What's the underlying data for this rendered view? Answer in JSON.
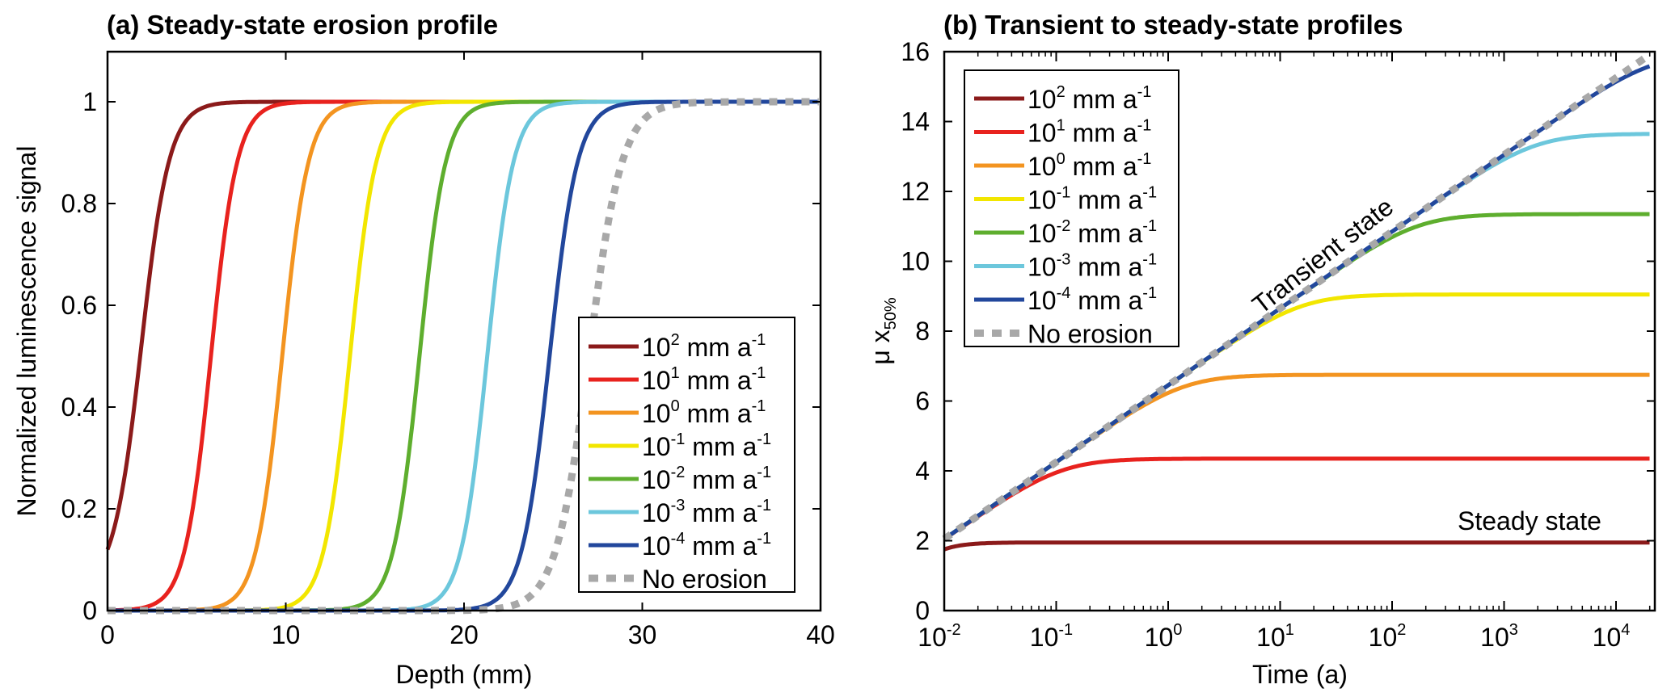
{
  "chart_data": [
    {
      "id": "a",
      "type": "line",
      "title": "(a)  Steady-state erosion profile",
      "xlabel": "Depth (mm)",
      "ylabel": "Normalized luminescence signal",
      "xlim": [
        0,
        40
      ],
      "ylim": [
        0,
        1.1
      ],
      "xticks": [
        0,
        10,
        20,
        30,
        40
      ],
      "xtick_labels": [
        "0",
        "10",
        "20",
        "30",
        "40"
      ],
      "yticks": [
        0,
        0.2,
        0.4,
        0.6,
        0.8,
        1
      ],
      "ytick_labels": [
        "0",
        "0.2",
        "0.4",
        "0.6",
        "0.8",
        "1"
      ],
      "grid": false,
      "legend_position": "bottom-right",
      "series": [
        {
          "name": "10^2 mm a^-1",
          "base": "10",
          "exp": "2",
          "unit": " mm a",
          "unit_exp": "-1",
          "color": "#8B1A1A",
          "style": "solid",
          "midpoint_depth": 1.9,
          "width": 1.6,
          "surface_value": 0.12
        },
        {
          "name": "10^1 mm a^-1",
          "base": "10",
          "exp": "1",
          "unit": " mm a",
          "unit_exp": "-1",
          "color": "#E8221E",
          "style": "solid",
          "midpoint_depth": 5.8,
          "width": 1.5,
          "surface_value": 0
        },
        {
          "name": "10^0 mm a^-1",
          "base": "10",
          "exp": "0",
          "unit": " mm a",
          "unit_exp": "-1",
          "color": "#F39420",
          "style": "solid",
          "midpoint_depth": 9.8,
          "width": 1.5,
          "surface_value": 0
        },
        {
          "name": "10^-1 mm a^-1",
          "base": "10",
          "exp": "-1",
          "unit": " mm a",
          "unit_exp": "-1",
          "color": "#F2E600",
          "style": "solid",
          "midpoint_depth": 13.6,
          "width": 1.5,
          "surface_value": 0
        },
        {
          "name": "10^-2 mm a^-1",
          "base": "10",
          "exp": "-2",
          "unit": " mm a",
          "unit_exp": "-1",
          "color": "#5EAE2E",
          "style": "solid",
          "midpoint_depth": 17.5,
          "width": 1.5,
          "surface_value": 0
        },
        {
          "name": "10^-3 mm a^-1",
          "base": "10",
          "exp": "-3",
          "unit": " mm a",
          "unit_exp": "-1",
          "color": "#6CC7DC",
          "style": "solid",
          "midpoint_depth": 21.3,
          "width": 1.5,
          "surface_value": 0
        },
        {
          "name": "10^-4 mm a^-1",
          "base": "10",
          "exp": "-4",
          "unit": " mm a",
          "unit_exp": "-1",
          "color": "#22479C",
          "style": "solid",
          "midpoint_depth": 24.8,
          "width": 1.6,
          "surface_value": 0
        },
        {
          "name": "No erosion",
          "label": "No erosion",
          "color": "#A8A8A8",
          "style": "dotted",
          "midpoint_depth": 27.0,
          "width": 1.9,
          "surface_value": 0
        }
      ]
    },
    {
      "id": "b",
      "type": "line",
      "title": "(b)  Transient to steady-state profiles",
      "xlabel": "Time (a)",
      "ylabel_main": "μ x",
      "ylabel_sub": "50%",
      "xscale": "log",
      "xlim_log10": [
        -2,
        4.31
      ],
      "ylim": [
        0,
        16
      ],
      "xticks_log10": [
        -2,
        -1,
        0,
        1,
        2,
        3,
        4
      ],
      "xtick_labels": [
        {
          "base": "10",
          "exp": "-2"
        },
        {
          "base": "10",
          "exp": "-1"
        },
        {
          "base": "10",
          "exp": "0"
        },
        {
          "base": "10",
          "exp": "1"
        },
        {
          "base": "10",
          "exp": "2"
        },
        {
          "base": "10",
          "exp": "3"
        },
        {
          "base": "10",
          "exp": "4"
        }
      ],
      "yticks": [
        0,
        2,
        4,
        6,
        8,
        10,
        12,
        14,
        16
      ],
      "ytick_labels": [
        "0",
        "2",
        "4",
        "6",
        "8",
        "10",
        "12",
        "14",
        "16"
      ],
      "grid": false,
      "legend_position": "top-left",
      "annotations": [
        {
          "text": "Transient state",
          "rotation": "diagonal"
        },
        {
          "text": "Steady state"
        }
      ],
      "series": [
        {
          "name": "10^2 mm a^-1",
          "base": "10",
          "exp": "2",
          "unit": "  mm a",
          "unit_exp": "-1",
          "color": "#8B1A1A",
          "style": "solid",
          "plateau": 1.95,
          "start": 1.75
        },
        {
          "name": "10^1 mm a^-1",
          "base": "10",
          "exp": "1",
          "unit": "  mm a",
          "unit_exp": "-1",
          "color": "#E8221E",
          "style": "solid",
          "plateau": 4.35,
          "start": 2.05
        },
        {
          "name": "10^0 mm a^-1",
          "base": "10",
          "exp": "0",
          "unit": "  mm a",
          "unit_exp": "-1",
          "color": "#F39420",
          "style": "solid",
          "plateau": 6.75,
          "start": 2.05
        },
        {
          "name": "10^-1 mm a^-1",
          "base": "10",
          "exp": "-1",
          "unit": " mm a",
          "unit_exp": "-1",
          "color": "#F2E600",
          "style": "solid",
          "plateau": 9.05,
          "start": 2.05
        },
        {
          "name": "10^-2 mm a^-1",
          "base": "10",
          "exp": "-2",
          "unit": " mm a",
          "unit_exp": "-1",
          "color": "#5EAE2E",
          "style": "solid",
          "plateau": 11.35,
          "start": 2.05
        },
        {
          "name": "10^-3 mm a^-1",
          "base": "10",
          "exp": "-3",
          "unit": " mm a",
          "unit_exp": "-1",
          "color": "#6CC7DC",
          "style": "solid",
          "plateau": 13.65,
          "start": 2.05
        },
        {
          "name": "10^-4 mm a^-1",
          "base": "10",
          "exp": "-4",
          "unit": " mm a",
          "unit_exp": "-1",
          "color": "#22479C",
          "style": "solid",
          "plateau": 15.95,
          "start": 2.05
        },
        {
          "name": "No erosion",
          "label": "No erosion",
          "color": "#A8A8A8",
          "style": "dotted",
          "plateau": null,
          "start": 2.05,
          "slope_per_decade": 2.2
        }
      ]
    }
  ]
}
